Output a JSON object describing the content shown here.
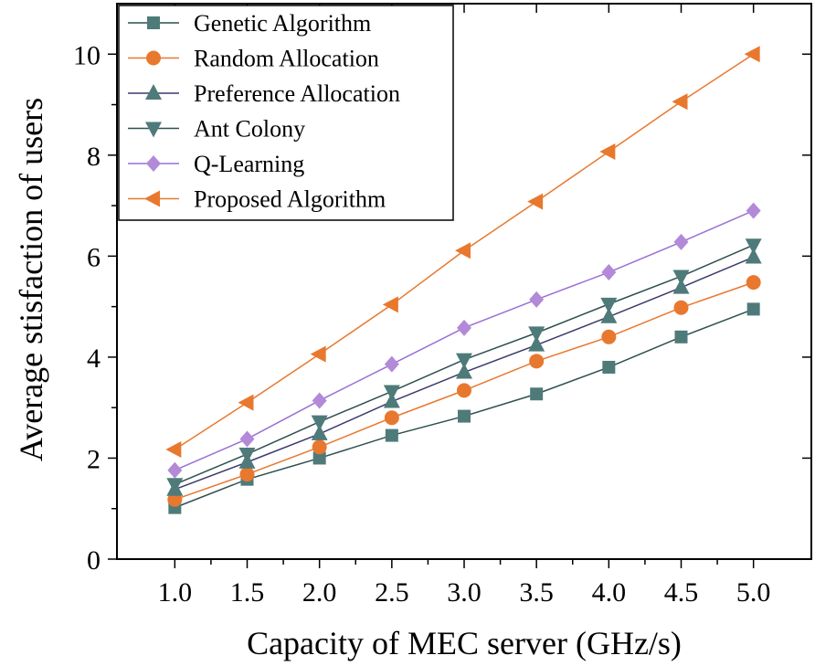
{
  "chart_data": {
    "type": "line",
    "title": "",
    "xlabel": "Capacity of MEC server (GHz/s)",
    "ylabel": "Average stisfaction of users",
    "x": [
      1.0,
      1.5,
      2.0,
      2.5,
      3.0,
      3.5,
      4.0,
      4.5,
      5.0
    ],
    "x_tick_labels": [
      "1.0",
      "1.5",
      "2.0",
      "2.5",
      "3.0",
      "3.5",
      "4.0",
      "4.5",
      "5.0"
    ],
    "xlim": [
      0.6,
      5.4
    ],
    "ylim": [
      0,
      11
    ],
    "y_ticks": [
      0,
      2,
      4,
      6,
      8,
      10
    ],
    "y_tick_labels": [
      "0",
      "2",
      "4",
      "6",
      "8",
      "10"
    ],
    "grid": false,
    "legend_position": "top-left",
    "series": [
      {
        "name": "Genetic Algorithm",
        "marker": "square",
        "marker_color": "#4f7a7a",
        "line_color": "#2f4f4f",
        "values": [
          1.02,
          1.58,
          2.0,
          2.45,
          2.83,
          3.27,
          3.8,
          4.4,
          4.95
        ]
      },
      {
        "name": "Random Allocation",
        "marker": "circle",
        "marker_color": "#e8782e",
        "line_color": "#e8782e",
        "values": [
          1.18,
          1.68,
          2.22,
          2.8,
          3.34,
          3.92,
          4.4,
          4.98,
          5.48
        ]
      },
      {
        "name": "Preference Allocation",
        "marker": "triangle-up",
        "marker_color": "#4f7a7a",
        "line_color": "#3b3b6b",
        "values": [
          1.38,
          1.92,
          2.48,
          3.12,
          3.7,
          4.24,
          4.8,
          5.38,
          5.98
        ]
      },
      {
        "name": "Ant Colony",
        "marker": "triangle-down",
        "marker_color": "#4f7a7a",
        "line_color": "#2f4f4f",
        "values": [
          1.48,
          2.08,
          2.72,
          3.32,
          3.95,
          4.48,
          5.05,
          5.6,
          6.22
        ]
      },
      {
        "name": "Q-Learning",
        "marker": "diamond",
        "marker_color": "#b28ad8",
        "line_color": "#9a6fd6",
        "values": [
          1.76,
          2.38,
          3.14,
          3.86,
          4.58,
          5.14,
          5.68,
          6.28,
          6.9
        ]
      },
      {
        "name": "Proposed Algorithm",
        "marker": "triangle-left",
        "marker_color": "#e8782e",
        "line_color": "#e8782e",
        "values": [
          2.17,
          3.1,
          4.06,
          5.04,
          6.11,
          7.08,
          8.07,
          9.06,
          10.0
        ]
      }
    ]
  }
}
